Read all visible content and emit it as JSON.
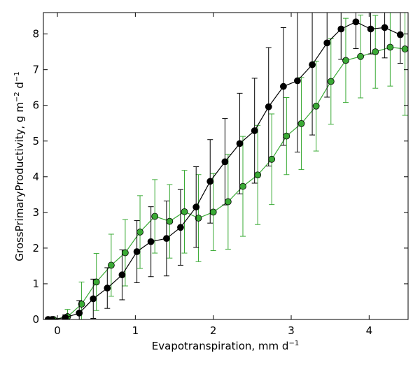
{
  "chart_data": {
    "type": "line",
    "xlabel": "Evapotranspiration,  mm d",
    "xlabel_sup": "−1",
    "ylabel": "GrossPrimaryProductivity,  g m",
    "ylabel_sup1": "−2",
    "ylabel_mid": " d",
    "ylabel_sup2": "−1",
    "xlim": [
      -0.18,
      4.5
    ],
    "ylim": [
      0,
      8.6
    ],
    "x_ticks": [
      0,
      1,
      2,
      3,
      4
    ],
    "x_tick_labels": [
      "0",
      "1",
      "2",
      "3",
      "4"
    ],
    "y_ticks": [
      0,
      1,
      2,
      3,
      4,
      5,
      6,
      7,
      8
    ],
    "y_tick_labels": [
      "0",
      "1",
      "2",
      "3",
      "4",
      "5",
      "6",
      "7",
      "8"
    ],
    "grid": false,
    "legend": null,
    "series": [
      {
        "color": "#000000",
        "x": [
          -0.12,
          -0.07,
          0.1,
          0.28,
          0.46,
          0.64,
          0.83,
          1.02,
          1.2,
          1.4,
          1.58,
          1.78,
          1.96,
          2.15,
          2.34,
          2.53,
          2.71,
          2.9,
          3.08,
          3.27,
          3.46,
          3.64,
          3.83,
          4.02,
          4.2,
          4.4
        ],
        "y": [
          0.0,
          0.0,
          0.05,
          0.18,
          0.58,
          0.88,
          1.25,
          1.9,
          2.18,
          2.27,
          2.58,
          3.15,
          3.87,
          4.42,
          4.93,
          5.29,
          5.96,
          6.53,
          6.69,
          7.14,
          7.75,
          8.14,
          8.34,
          8.14,
          8.18,
          7.98
        ],
        "err": [
          0.0,
          0.0,
          0.08,
          0.35,
          0.55,
          0.57,
          0.7,
          0.87,
          0.98,
          1.05,
          1.06,
          1.13,
          1.17,
          1.21,
          1.41,
          1.47,
          1.66,
          1.65,
          2.0,
          1.97,
          1.52,
          0.85,
          0.75,
          0.7,
          0.85,
          0.8
        ]
      },
      {
        "color": "#3aaa35",
        "x": [
          -0.05,
          0.13,
          0.31,
          0.5,
          0.69,
          0.87,
          1.06,
          1.25,
          1.44,
          1.63,
          1.81,
          2.0,
          2.19,
          2.38,
          2.57,
          2.75,
          2.94,
          3.13,
          3.32,
          3.51,
          3.7,
          3.89,
          4.08,
          4.27,
          4.46
        ],
        "y": [
          0.0,
          0.08,
          0.43,
          1.05,
          1.52,
          1.87,
          2.45,
          2.89,
          2.75,
          3.02,
          2.84,
          3.01,
          3.3,
          3.73,
          4.05,
          4.49,
          5.14,
          5.49,
          5.98,
          6.67,
          7.26,
          7.37,
          7.5,
          7.63,
          7.58
        ]
      }
    ],
    "green_err": [
      0.0,
      0.2,
      0.62,
      0.8,
      0.87,
      0.93,
      1.02,
      1.03,
      1.03,
      1.16,
      1.22,
      1.08,
      1.33,
      1.4,
      1.39,
      1.27,
      1.08,
      1.29,
      1.26,
      1.2,
      1.18,
      1.16,
      1.02,
      1.09,
      1.86
    ]
  }
}
